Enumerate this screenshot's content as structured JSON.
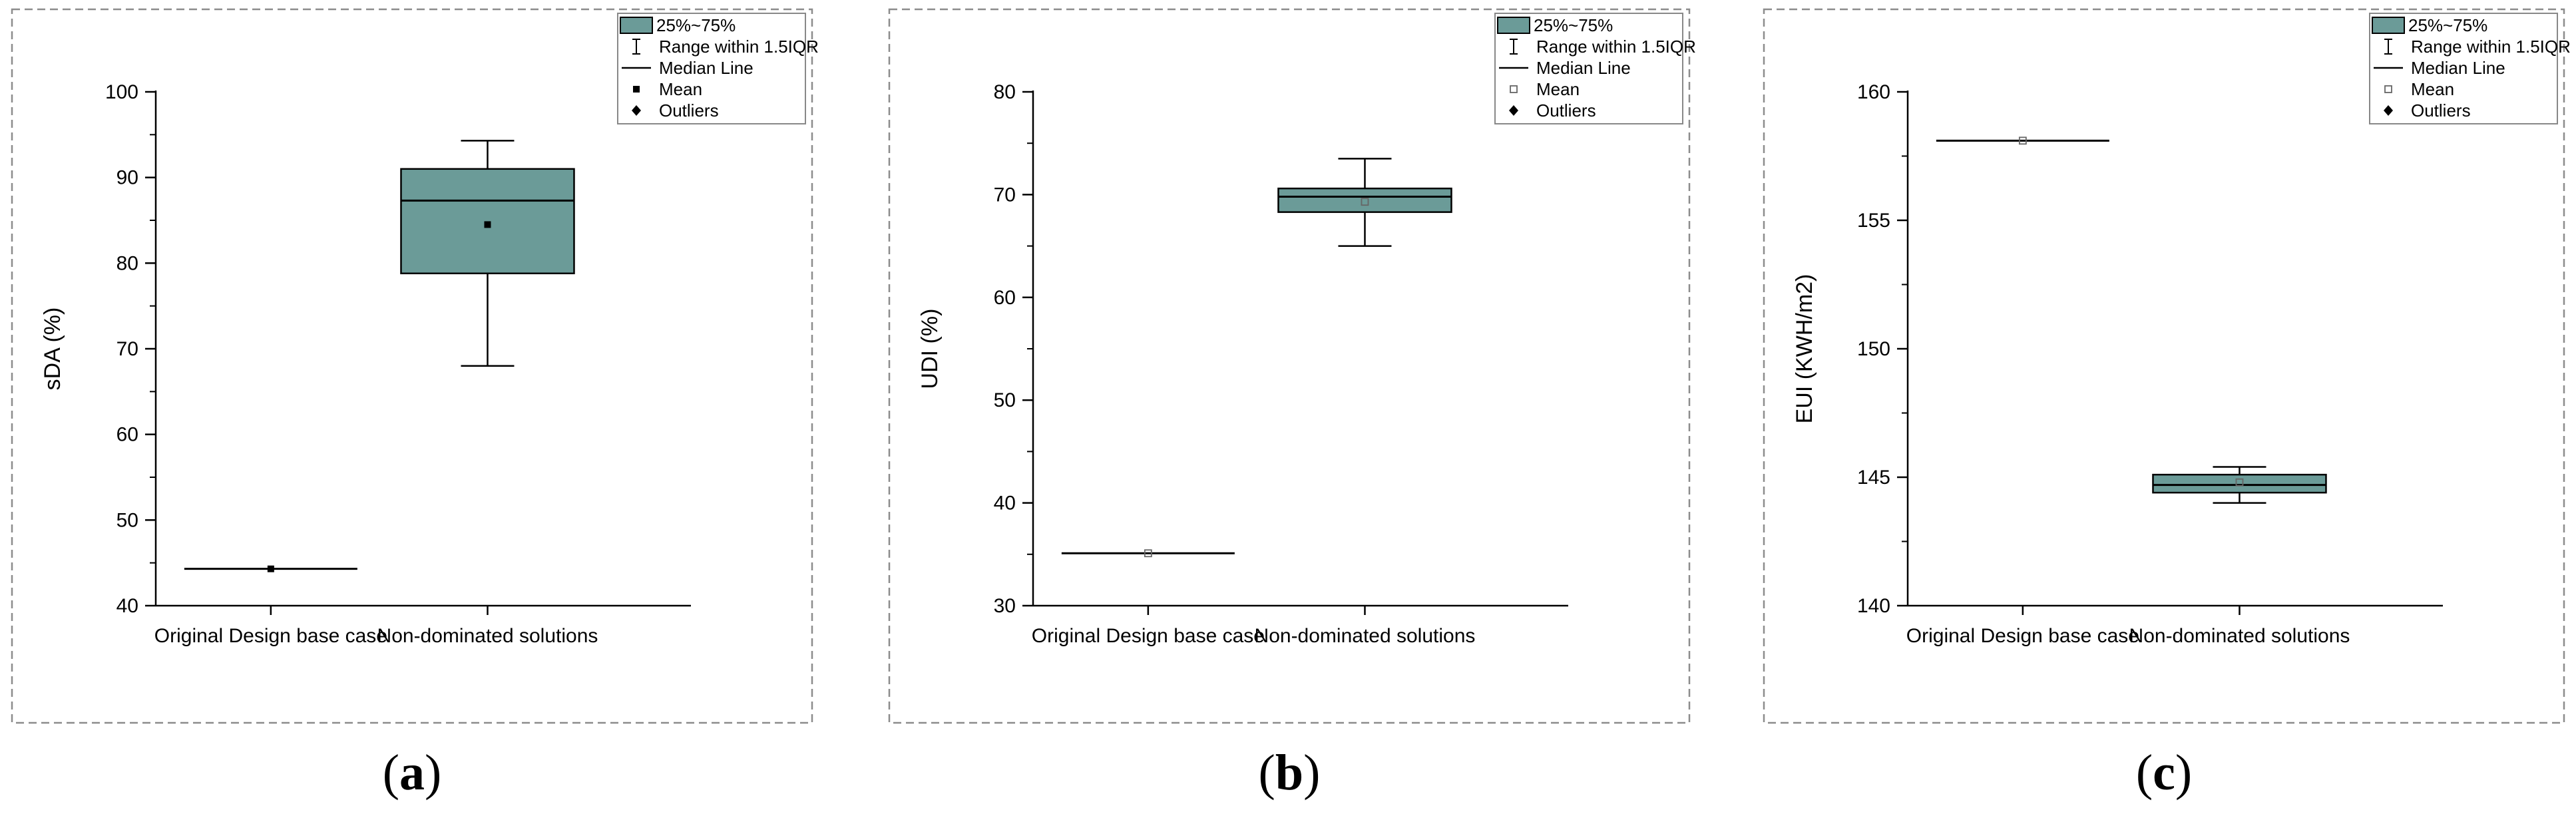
{
  "panels": [
    {
      "caption_open": "(",
      "caption_letter": "a",
      "caption_close": ")",
      "chart_data": {
        "type": "box",
        "categories": [
          "Original Design base case",
          "Non-dominated solutions"
        ],
        "ylabel": "sDA (%)",
        "xlabel": "",
        "ylim": [
          40,
          100
        ],
        "yticks": [
          40,
          50,
          60,
          70,
          80,
          90,
          100
        ],
        "mean_marker": "filled",
        "boxes": [
          {
            "category": "Original Design base case",
            "min": 44.3,
            "q1": 44.3,
            "median": 44.3,
            "q3": 44.3,
            "max": 44.3,
            "mean": 44.3
          },
          {
            "category": "Non-dominated solutions",
            "min": 68.0,
            "q1": 78.8,
            "median": 87.3,
            "q3": 91.0,
            "max": 94.3,
            "mean": 84.5
          }
        ],
        "legend": {
          "position": "top-right",
          "entries": [
            "25%~75%",
            "Range within 1.5IQR",
            "Median Line",
            "Mean",
            "Outliers"
          ]
        },
        "grid": false,
        "box_color": "#6b9b98"
      }
    },
    {
      "caption_open": "(",
      "caption_letter": "b",
      "caption_close": ")",
      "chart_data": {
        "type": "box",
        "categories": [
          "Original Design base case",
          "Non-dominated solutions"
        ],
        "ylabel": "UDI (%)",
        "xlabel": "",
        "ylim": [
          30,
          80
        ],
        "yticks": [
          30,
          40,
          50,
          60,
          70,
          80
        ],
        "mean_marker": "hollow",
        "boxes": [
          {
            "category": "Original Design base case",
            "min": 35.1,
            "q1": 35.1,
            "median": 35.1,
            "q3": 35.1,
            "max": 35.1,
            "mean": 35.1
          },
          {
            "category": "Non-dominated solutions",
            "min": 65.0,
            "q1": 68.3,
            "median": 69.8,
            "q3": 70.6,
            "max": 73.5,
            "mean": 69.3
          }
        ],
        "legend": {
          "position": "top-right",
          "entries": [
            "25%~75%",
            "Range within 1.5IQR",
            "Median Line",
            "Mean",
            "Outliers"
          ]
        },
        "grid": false,
        "box_color": "#6b9b98"
      }
    },
    {
      "caption_open": "(",
      "caption_letter": "c",
      "caption_close": ")",
      "chart_data": {
        "type": "box",
        "categories": [
          "Original Design base case",
          "Non-dominated solutions"
        ],
        "ylabel": "EUI (KWH/m2)",
        "xlabel": "",
        "ylim": [
          140,
          160
        ],
        "yticks": [
          140,
          145,
          150,
          155,
          160
        ],
        "mean_marker": "hollow",
        "boxes": [
          {
            "category": "Original Design base case",
            "min": 158.1,
            "q1": 158.1,
            "median": 158.1,
            "q3": 158.1,
            "max": 158.1,
            "mean": 158.1
          },
          {
            "category": "Non-dominated solutions",
            "min": 144.0,
            "q1": 144.4,
            "median": 144.7,
            "q3": 145.1,
            "max": 145.4,
            "mean": 144.8
          }
        ],
        "legend": {
          "position": "top-right",
          "entries": [
            "25%~75%",
            "Range within 1.5IQR",
            "Median Line",
            "Mean",
            "Outliers"
          ]
        },
        "grid": false,
        "box_color": "#6b9b98"
      }
    }
  ]
}
